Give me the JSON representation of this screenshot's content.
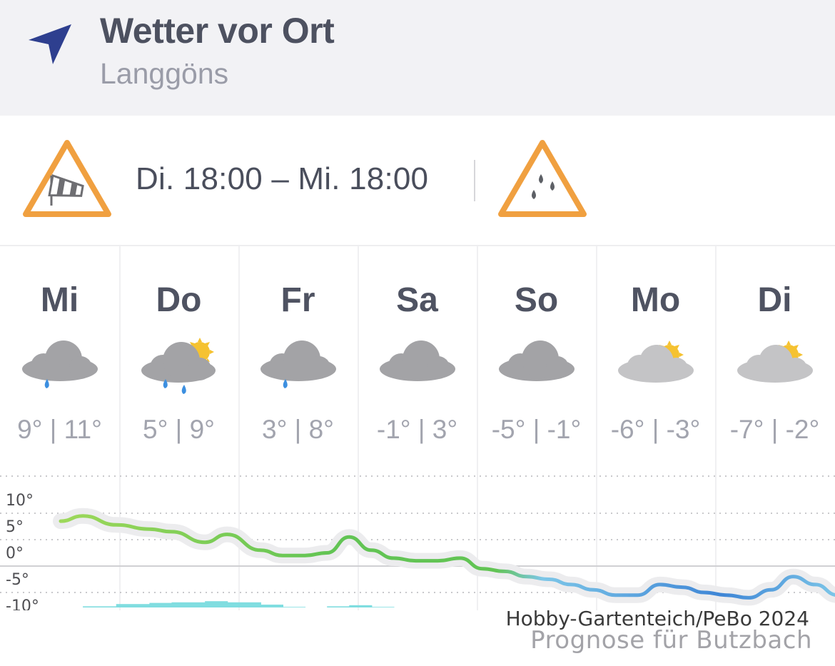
{
  "header": {
    "title": "Wetter vor Ort",
    "location": "Langgöns",
    "icon": "location-arrow-icon"
  },
  "warnings": {
    "period": "Di. 18:00 – Mi. 18:00",
    "items": [
      {
        "icon": "wind-warning-icon"
      },
      {
        "icon": "rain-warning-icon"
      }
    ]
  },
  "days": [
    {
      "name": "Mi",
      "icon": "cloud-light-rain-icon",
      "temp": "9° | 11°"
    },
    {
      "name": "Do",
      "icon": "sun-cloud-rain-icon",
      "temp": "5° | 9°"
    },
    {
      "name": "Fr",
      "icon": "cloud-light-rain-icon",
      "temp": "3° | 8°"
    },
    {
      "name": "Sa",
      "icon": "cloud-icon",
      "temp": "-1° | 3°"
    },
    {
      "name": "So",
      "icon": "cloud-icon",
      "temp": "-5° | -1°"
    },
    {
      "name": "Mo",
      "icon": "sun-cloud-icon",
      "temp": "-6° | -3°"
    },
    {
      "name": "Di",
      "icon": "sun-cloud-icon",
      "temp": "-7° | -2°"
    }
  ],
  "chart_data": {
    "type": "line",
    "y_ticks": [
      "10°",
      "5°",
      "0°",
      "-5°",
      "-10°"
    ],
    "ylim": [
      -10,
      10
    ],
    "unit": "°",
    "grid": true,
    "legend": "none",
    "x": [
      0,
      0.2,
      0.5,
      0.8,
      1.0,
      1.3,
      1.5,
      1.8,
      2.0,
      2.2,
      2.4,
      2.6,
      2.8,
      3.0,
      3.2,
      3.4,
      3.6,
      3.8,
      4.0,
      4.2,
      4.4,
      4.6,
      4.8,
      5.0,
      5.2,
      5.4,
      5.6,
      5.8,
      6.0,
      6.2,
      6.4,
      6.6,
      6.8,
      7.0
    ],
    "series": [
      {
        "values": [
          8.5,
          9.5,
          7.8,
          7.0,
          6.5,
          4.5,
          6.0,
          3.0,
          2.0,
          2.0,
          2.5,
          5.5,
          3.0,
          1.5,
          1.0,
          1.0,
          1.5,
          -0.5,
          -1.0,
          -2.0,
          -2.5,
          -3.5,
          -4.5,
          -5.5,
          -5.5,
          -3.5,
          -4.0,
          -5.0,
          -5.5,
          -6.0,
          -4.5,
          -2.0,
          -3.5,
          -5.5
        ]
      }
    ],
    "precipitation": [
      0,
      0.2,
      0.6,
      0.8,
      0.9,
      1.1,
      0.9,
      0.5,
      0.1,
      0,
      0.2,
      0.4,
      0.1,
      0,
      0,
      0,
      0,
      0,
      0,
      0,
      0,
      0,
      0,
      0,
      0,
      0,
      0,
      0,
      0,
      0,
      0,
      0,
      0,
      0
    ],
    "colors": {
      "warm": "#9dd85a",
      "mid": "#62c454",
      "cool": "#7cc6e8",
      "cold": "#3f86d6",
      "precip": "#80dde0"
    }
  },
  "footer": {
    "credit": "Hobby-Gartenteich/PeBo 2024",
    "forecast_for": "Prognose für Butzbach"
  }
}
